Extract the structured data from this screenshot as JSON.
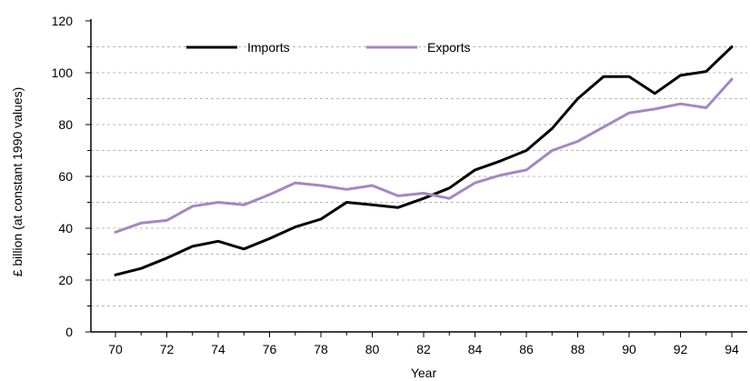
{
  "chart_data": {
    "type": "line",
    "title": "",
    "xlabel": "Year",
    "ylabel": "£ billion (at constant 1990 values)",
    "xlim": [
      70,
      94
    ],
    "ylim": [
      0,
      120
    ],
    "x_ticks": [
      70,
      72,
      74,
      76,
      78,
      80,
      82,
      84,
      86,
      88,
      90,
      92,
      94
    ],
    "x_tick_labels": [
      "70",
      "72",
      "74",
      "76",
      "78",
      "80",
      "82",
      "84",
      "86",
      "88",
      "90",
      "92",
      "94"
    ],
    "y_ticks": [
      0,
      20,
      40,
      60,
      80,
      100,
      120
    ],
    "y_tick_labels": [
      "0",
      "20",
      "40",
      "60",
      "80",
      "100",
      "120"
    ],
    "grid": true,
    "legend_position": "top-left",
    "x": [
      70,
      71,
      72,
      73,
      74,
      75,
      76,
      77,
      78,
      79,
      80,
      81,
      82,
      83,
      84,
      85,
      86,
      87,
      88,
      89,
      90,
      91,
      92,
      93,
      94
    ],
    "series": [
      {
        "name": "Imports",
        "color": "#000000",
        "values": [
          22,
          24.5,
          28.5,
          33,
          35,
          32,
          36,
          40.5,
          43.5,
          50,
          49,
          48,
          51.5,
          55.5,
          62.5,
          66,
          70,
          78.5,
          90,
          98.5,
          98.5,
          92,
          99,
          100.5,
          110
        ]
      },
      {
        "name": "Exports",
        "color": "#a487c2",
        "values": [
          38.5,
          42,
          43,
          48.5,
          50,
          49,
          53,
          57.5,
          56.5,
          55,
          56.5,
          52.5,
          53.5,
          51.5,
          57.5,
          60.5,
          62.5,
          70,
          73.5,
          79,
          84.5,
          86,
          88,
          86.5,
          97.5
        ]
      }
    ]
  }
}
